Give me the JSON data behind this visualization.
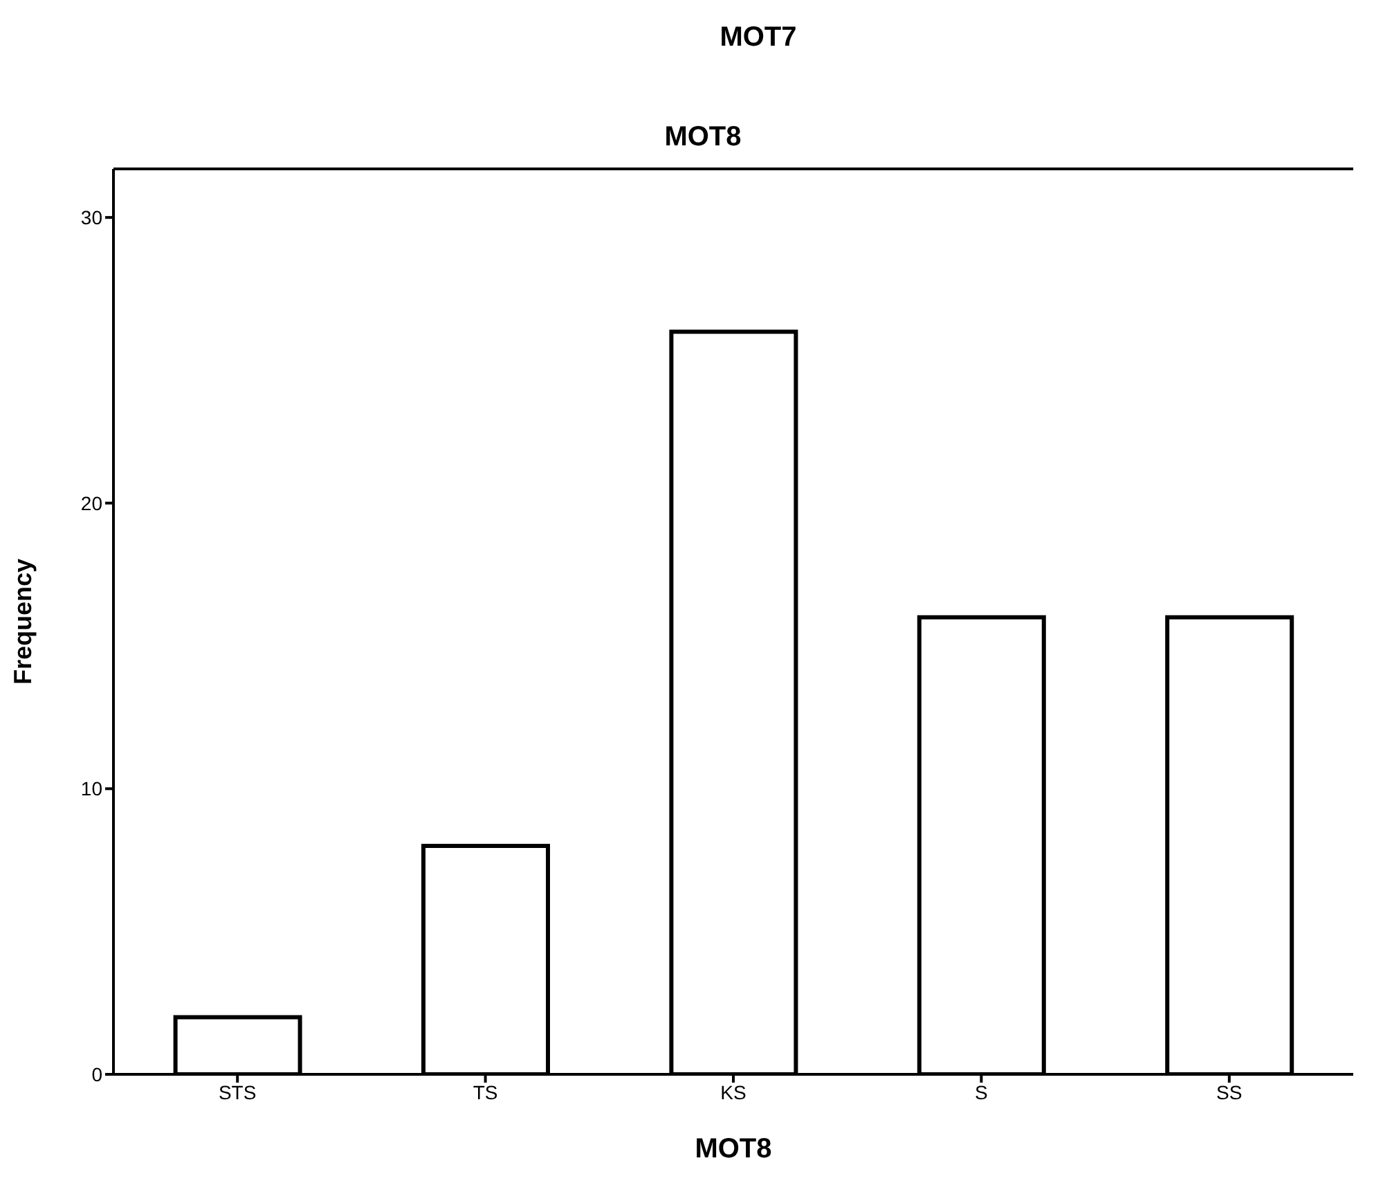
{
  "chart_data": {
    "type": "bar",
    "title": "MOT8",
    "xlabel": "MOT8",
    "ylabel": "Frequency",
    "annotations": [
      "MOT7"
    ],
    "categories": [
      "STS",
      "TS",
      "KS",
      "S",
      "SS"
    ],
    "values": [
      2,
      8,
      26,
      16,
      16
    ],
    "color": "#ffffff",
    "ylim": [
      0,
      31.7
    ],
    "yticks": [
      0,
      10,
      20,
      30
    ]
  }
}
